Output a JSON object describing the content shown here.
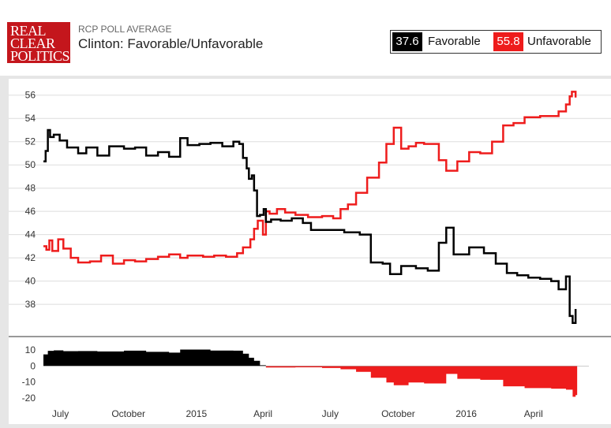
{
  "header": {
    "logo_lines": [
      "REAL",
      "CLEAR",
      "POLITICS"
    ],
    "subtitle": "RCP POLL AVERAGE",
    "title": "Clinton: Favorable/Unfavorable"
  },
  "legend": [
    {
      "value": "37.6",
      "label": "Favorable",
      "color": "#000000"
    },
    {
      "value": "55.8",
      "label": "Unfavorable",
      "color": "#ee1c1c"
    }
  ],
  "colors": {
    "favorable": "#000000",
    "unfavorable": "#ee1c1c",
    "grid": "#dddddd",
    "brand": "#c4161c"
  },
  "chart_data": {
    "type": "line",
    "x_tick_labels": [
      "July",
      "October",
      "2015",
      "April",
      "July",
      "October",
      "2016",
      "April"
    ],
    "x_tick_dates": [
      "2014-07-01",
      "2014-10-01",
      "2015-01-01",
      "2015-04-01",
      "2015-07-01",
      "2015-10-01",
      "2016-01-01",
      "2016-04-01"
    ],
    "x_range": [
      "2014-06-08",
      "2016-06-15"
    ],
    "main": {
      "ylim": [
        35.5,
        57
      ],
      "y_ticks": [
        38,
        40,
        42,
        44,
        46,
        48,
        50,
        52,
        54,
        56
      ],
      "grid": true,
      "series": [
        {
          "name": "Favorable",
          "color": "#000000",
          "points": [
            [
              "2014-06-08",
              50.3
            ],
            [
              "2014-06-11",
              51.2
            ],
            [
              "2014-06-14",
              53.0
            ],
            [
              "2014-06-17",
              52.4
            ],
            [
              "2014-06-22",
              52.6
            ],
            [
              "2014-06-30",
              52.1
            ],
            [
              "2014-07-10",
              51.5
            ],
            [
              "2014-07-25",
              51.0
            ],
            [
              "2014-08-05",
              51.5
            ],
            [
              "2014-08-20",
              50.8
            ],
            [
              "2014-09-05",
              51.6
            ],
            [
              "2014-09-25",
              51.4
            ],
            [
              "2014-10-10",
              51.5
            ],
            [
              "2014-10-25",
              50.8
            ],
            [
              "2014-11-10",
              51.1
            ],
            [
              "2014-11-25",
              50.7
            ],
            [
              "2014-12-10",
              52.3
            ],
            [
              "2014-12-20",
              51.7
            ],
            [
              "2015-01-05",
              51.8
            ],
            [
              "2015-01-20",
              51.9
            ],
            [
              "2015-02-05",
              51.6
            ],
            [
              "2015-02-20",
              52.0
            ],
            [
              "2015-02-28",
              51.8
            ],
            [
              "2015-03-05",
              50.6
            ],
            [
              "2015-03-10",
              49.7
            ],
            [
              "2015-03-13",
              48.8
            ],
            [
              "2015-03-17",
              49.1
            ],
            [
              "2015-03-20",
              47.8
            ],
            [
              "2015-03-24",
              45.6
            ],
            [
              "2015-03-28",
              45.7
            ],
            [
              "2015-04-02",
              46.2
            ],
            [
              "2015-04-05",
              45.1
            ],
            [
              "2015-04-12",
              45.3
            ],
            [
              "2015-04-25",
              45.2
            ],
            [
              "2015-05-10",
              45.4
            ],
            [
              "2015-05-25",
              45.0
            ],
            [
              "2015-06-05",
              44.4
            ],
            [
              "2015-07-01",
              44.4
            ],
            [
              "2015-07-20",
              44.2
            ],
            [
              "2015-08-10",
              44.0
            ],
            [
              "2015-08-25",
              41.6
            ],
            [
              "2015-09-10",
              41.5
            ],
            [
              "2015-09-20",
              40.6
            ],
            [
              "2015-10-05",
              41.3
            ],
            [
              "2015-10-25",
              41.1
            ],
            [
              "2015-11-10",
              40.9
            ],
            [
              "2015-11-25",
              43.3
            ],
            [
              "2015-12-05",
              44.6
            ],
            [
              "2015-12-15",
              42.3
            ],
            [
              "2016-01-05",
              42.9
            ],
            [
              "2016-01-25",
              42.4
            ],
            [
              "2016-02-10",
              41.5
            ],
            [
              "2016-02-25",
              40.7
            ],
            [
              "2016-03-10",
              40.5
            ],
            [
              "2016-03-25",
              40.3
            ],
            [
              "2016-04-10",
              40.2
            ],
            [
              "2016-04-25",
              40.0
            ],
            [
              "2016-05-05",
              39.3
            ],
            [
              "2016-05-15",
              40.4
            ],
            [
              "2016-05-20",
              37.0
            ],
            [
              "2016-05-24",
              36.4
            ],
            [
              "2016-05-28",
              37.6
            ]
          ]
        },
        {
          "name": "Unfavorable",
          "color": "#ee1c1c",
          "points": [
            [
              "2014-06-08",
              43.0
            ],
            [
              "2014-06-12",
              42.7
            ],
            [
              "2014-06-16",
              43.5
            ],
            [
              "2014-06-20",
              42.6
            ],
            [
              "2014-06-28",
              43.6
            ],
            [
              "2014-07-05",
              42.8
            ],
            [
              "2014-07-15",
              42.0
            ],
            [
              "2014-07-25",
              41.6
            ],
            [
              "2014-08-10",
              41.7
            ],
            [
              "2014-08-25",
              42.2
            ],
            [
              "2014-09-10",
              41.5
            ],
            [
              "2014-09-25",
              41.8
            ],
            [
              "2014-10-10",
              41.7
            ],
            [
              "2014-10-25",
              41.9
            ],
            [
              "2014-11-10",
              42.1
            ],
            [
              "2014-11-25",
              42.3
            ],
            [
              "2014-12-10",
              42.0
            ],
            [
              "2014-12-20",
              42.2
            ],
            [
              "2015-01-10",
              42.1
            ],
            [
              "2015-01-25",
              42.2
            ],
            [
              "2015-02-10",
              42.1
            ],
            [
              "2015-02-25",
              42.4
            ],
            [
              "2015-03-05",
              42.9
            ],
            [
              "2015-03-15",
              43.6
            ],
            [
              "2015-03-20",
              44.5
            ],
            [
              "2015-03-25",
              45.2
            ],
            [
              "2015-04-01",
              44.0
            ],
            [
              "2015-04-05",
              46.0
            ],
            [
              "2015-04-10",
              45.8
            ],
            [
              "2015-04-20",
              46.2
            ],
            [
              "2015-05-01",
              45.9
            ],
            [
              "2015-05-15",
              45.7
            ],
            [
              "2015-06-01",
              45.5
            ],
            [
              "2015-06-20",
              45.6
            ],
            [
              "2015-07-05",
              45.4
            ],
            [
              "2015-07-15",
              46.2
            ],
            [
              "2015-07-25",
              46.6
            ],
            [
              "2015-08-05",
              47.6
            ],
            [
              "2015-08-20",
              48.9
            ],
            [
              "2015-09-05",
              50.2
            ],
            [
              "2015-09-15",
              51.8
            ],
            [
              "2015-09-25",
              53.2
            ],
            [
              "2015-10-05",
              51.4
            ],
            [
              "2015-10-15",
              51.6
            ],
            [
              "2015-10-25",
              51.9
            ],
            [
              "2015-11-05",
              51.8
            ],
            [
              "2015-11-25",
              50.4
            ],
            [
              "2015-12-05",
              49.5
            ],
            [
              "2015-12-20",
              50.3
            ],
            [
              "2016-01-05",
              51.1
            ],
            [
              "2016-01-20",
              51.0
            ],
            [
              "2016-02-05",
              52.0
            ],
            [
              "2016-02-20",
              53.4
            ],
            [
              "2016-03-05",
              53.6
            ],
            [
              "2016-03-20",
              54.1
            ],
            [
              "2016-04-10",
              54.2
            ],
            [
              "2016-04-25",
              54.2
            ],
            [
              "2016-05-05",
              54.6
            ],
            [
              "2016-05-15",
              55.2
            ],
            [
              "2016-05-20",
              55.9
            ],
            [
              "2016-05-23",
              56.3
            ],
            [
              "2016-05-28",
              55.8
            ]
          ]
        }
      ]
    },
    "spread": {
      "ylim": [
        -22,
        14
      ],
      "y_ticks": [
        10,
        0,
        -10,
        -20
      ],
      "positive_color": "#000000",
      "negative_color": "#ee1c1c",
      "points": [
        [
          "2014-06-08",
          7.3
        ],
        [
          "2014-06-14",
          9.5
        ],
        [
          "2014-06-22",
          9.8
        ],
        [
          "2014-07-05",
          9.3
        ],
        [
          "2014-07-25",
          9.4
        ],
        [
          "2014-08-20",
          9.1
        ],
        [
          "2014-09-25",
          9.6
        ],
        [
          "2014-10-25",
          8.9
        ],
        [
          "2014-11-25",
          8.4
        ],
        [
          "2014-12-10",
          10.3
        ],
        [
          "2015-01-20",
          9.7
        ],
        [
          "2015-02-20",
          9.6
        ],
        [
          "2015-03-05",
          7.7
        ],
        [
          "2015-03-13",
          5.2
        ],
        [
          "2015-03-20",
          3.3
        ],
        [
          "2015-03-28",
          0.5
        ],
        [
          "2015-04-05",
          -0.9
        ],
        [
          "2015-04-20",
          -0.9
        ],
        [
          "2015-05-15",
          -0.8
        ],
        [
          "2015-06-20",
          -1.2
        ],
        [
          "2015-07-15",
          -2.0
        ],
        [
          "2015-08-05",
          -3.6
        ],
        [
          "2015-08-25",
          -7.3
        ],
        [
          "2015-09-15",
          -10.3
        ],
        [
          "2015-09-25",
          -12.0
        ],
        [
          "2015-10-15",
          -10.3
        ],
        [
          "2015-11-05",
          -10.9
        ],
        [
          "2015-12-05",
          -4.9
        ],
        [
          "2015-12-20",
          -8.0
        ],
        [
          "2016-01-20",
          -8.6
        ],
        [
          "2016-02-20",
          -12.7
        ],
        [
          "2016-03-20",
          -13.8
        ],
        [
          "2016-04-25",
          -14.2
        ],
        [
          "2016-05-15",
          -14.8
        ],
        [
          "2016-05-24",
          -19.2
        ],
        [
          "2016-05-28",
          -18.2
        ]
      ]
    }
  }
}
